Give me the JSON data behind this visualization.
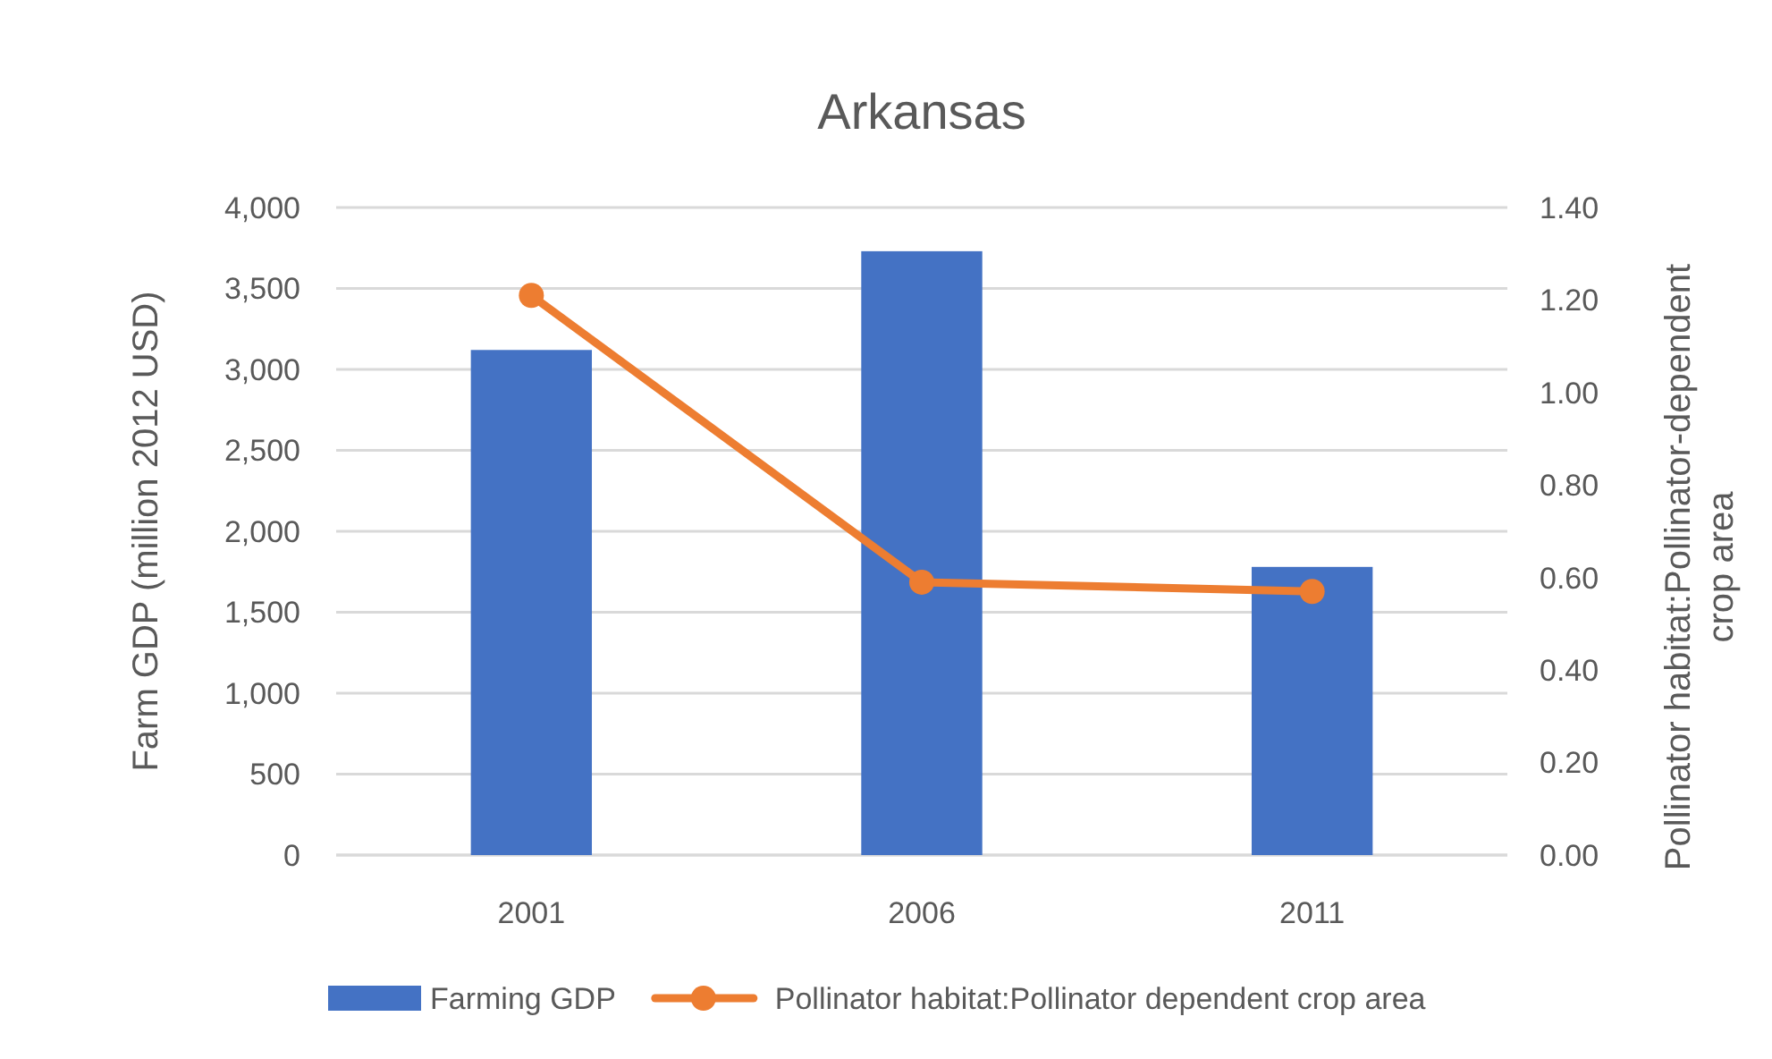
{
  "chart_data": {
    "type": "bar",
    "title": "Arkansas",
    "categories": [
      "2001",
      "2006",
      "2011"
    ],
    "ylabel": "Farm GDP (million 2012 USD)",
    "y2label": "Pollinator habitat:Pollinator-dependent\ncrop area",
    "series": [
      {
        "name": "Farming GDP",
        "color": "#4472c4",
        "values": [
          3120,
          3730,
          1780
        ]
      },
      {
        "name": "Pollinator habitat:Pollinator dependent crop area",
        "type": "line",
        "axis": "y2",
        "color": "#ed7d31",
        "marker": "circle",
        "values": [
          1.21,
          0.59,
          0.57
        ]
      }
    ],
    "ylim": [
      0,
      4000
    ],
    "yticks": [
      {
        "value": 0,
        "label": "0"
      },
      {
        "value": 500,
        "label": "500"
      },
      {
        "value": 1000,
        "label": "1,000"
      },
      {
        "value": 1500,
        "label": "1,500"
      },
      {
        "value": 2000,
        "label": "2,000"
      },
      {
        "value": 2500,
        "label": "2,500"
      },
      {
        "value": 3000,
        "label": "3,000"
      },
      {
        "value": 3500,
        "label": "3,500"
      },
      {
        "value": 4000,
        "label": "4,000"
      }
    ],
    "y2lim": [
      0,
      1.4
    ],
    "y2ticks": [
      {
        "value": 0,
        "label": "0.00"
      },
      {
        "value": 0.2,
        "label": "0.20"
      },
      {
        "value": 0.4,
        "label": "0.40"
      },
      {
        "value": 0.6,
        "label": "0.60"
      },
      {
        "value": 0.8,
        "label": "0.80"
      },
      {
        "value": 1,
        "label": "1.00"
      },
      {
        "value": 1.2,
        "label": "1.20"
      },
      {
        "value": 1.4,
        "label": "1.40"
      }
    ],
    "grid": "y",
    "legend": "bottom"
  }
}
